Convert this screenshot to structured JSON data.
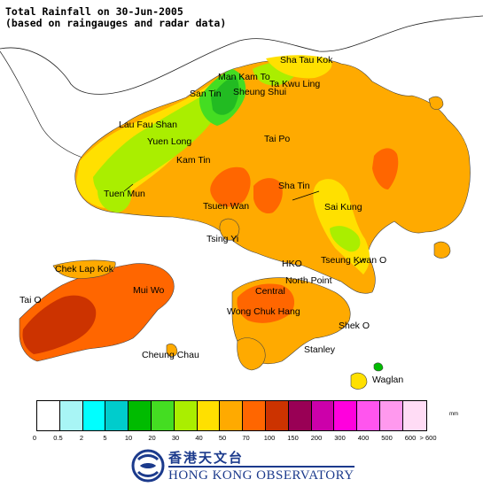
{
  "title_line1": "Total Rainfall on 30-Jun-2005",
  "title_line2": "(based on raingauges and radar data)",
  "places": [
    "Sha Tau Kok",
    "Man Kam To",
    "Ta Kwu Ling",
    "San Tin",
    "Sheung Shui",
    "Lau Fau Shan",
    "Yuen Long",
    "Tai Po",
    "Kam Tin",
    "Sha Tin",
    "Tuen Mun",
    "Tsuen Wan",
    "Sai Kung",
    "Tsing Yi",
    "HKO",
    "Tseung Kwan O",
    "Chek Lap Kok",
    "North Point",
    "Mui Wo",
    "Central",
    "Tai O",
    "Wong Chuk Hang",
    "Shek O",
    "Cheung Chau",
    "Stanley",
    "Waglan"
  ],
  "legend": {
    "unit": "mm",
    "colors": [
      "#ffffff",
      "#a8f5f5",
      "#00ffff",
      "#00cccc",
      "#00bb00",
      "#44dd22",
      "#aaee00",
      "#ffe000",
      "#ffaa00",
      "#ff6600",
      "#cc3300",
      "#990055",
      "#cc00aa",
      "#ff00dd",
      "#ff55ee",
      "#ff99ee",
      "#ffdcf5"
    ],
    "ticks": [
      "0",
      "0.5",
      "2",
      "5",
      "10",
      "20",
      "30",
      "40",
      "50",
      "70",
      "100",
      "150",
      "200",
      "300",
      "400",
      "500",
      "600",
      "> 600"
    ]
  },
  "logo": {
    "chinese": "香港天文台",
    "english": "HONG KONG OBSERVATORY"
  }
}
